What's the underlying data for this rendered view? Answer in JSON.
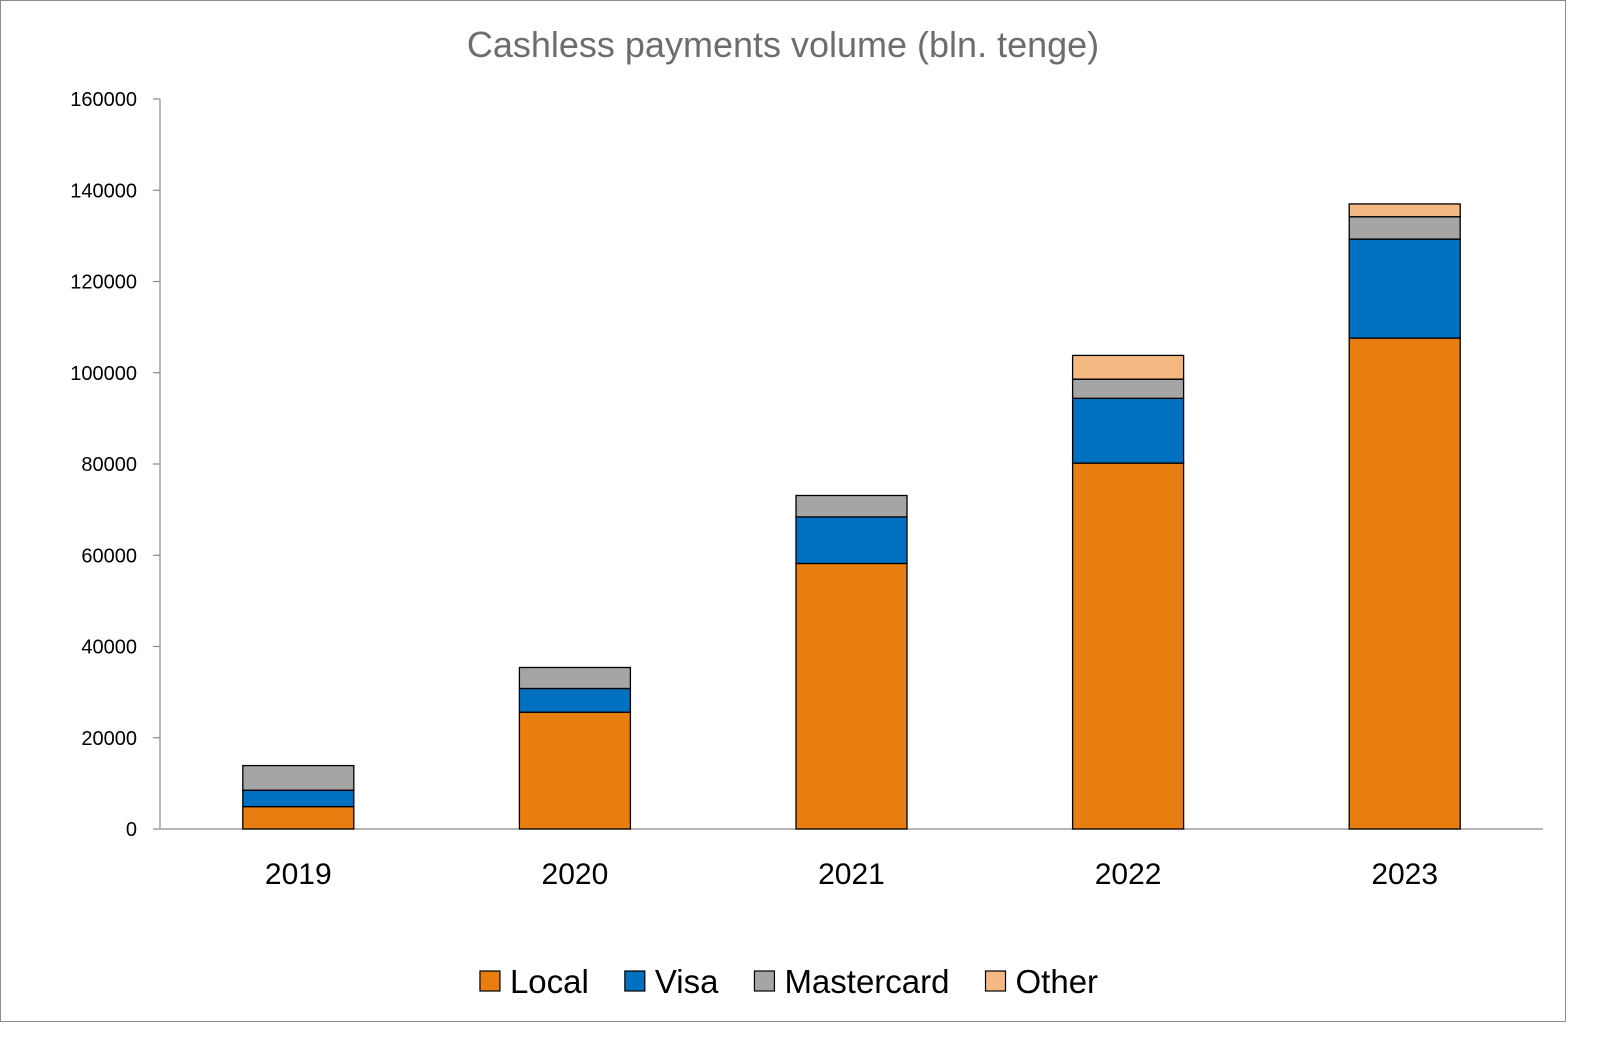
{
  "chart_data": {
    "type": "bar",
    "stacked": true,
    "title": "Cashless payments volume (bln. tenge)",
    "xlabel": "",
    "ylabel": "",
    "categories": [
      "2019",
      "2020",
      "2021",
      "2022",
      "2023"
    ],
    "series": [
      {
        "name": "Local",
        "values": [
          4900,
          25600,
          58200,
          80200,
          107600
        ],
        "color": "#E97E10"
      },
      {
        "name": "Visa",
        "values": [
          3600,
          5200,
          10200,
          14200,
          21700
        ],
        "color": "#0070C0"
      },
      {
        "name": "Mastercard",
        "values": [
          5400,
          4600,
          4700,
          4200,
          4900
        ],
        "color": "#A5A5A5"
      },
      {
        "name": "Other",
        "values": [
          0,
          0,
          0,
          5200,
          2800
        ],
        "color": "#F4B983"
      }
    ],
    "ylim": [
      0,
      160000
    ],
    "yticks": [
      0,
      20000,
      40000,
      60000,
      80000,
      100000,
      120000,
      140000,
      160000
    ],
    "grid": false,
    "legend_position": "bottom"
  }
}
